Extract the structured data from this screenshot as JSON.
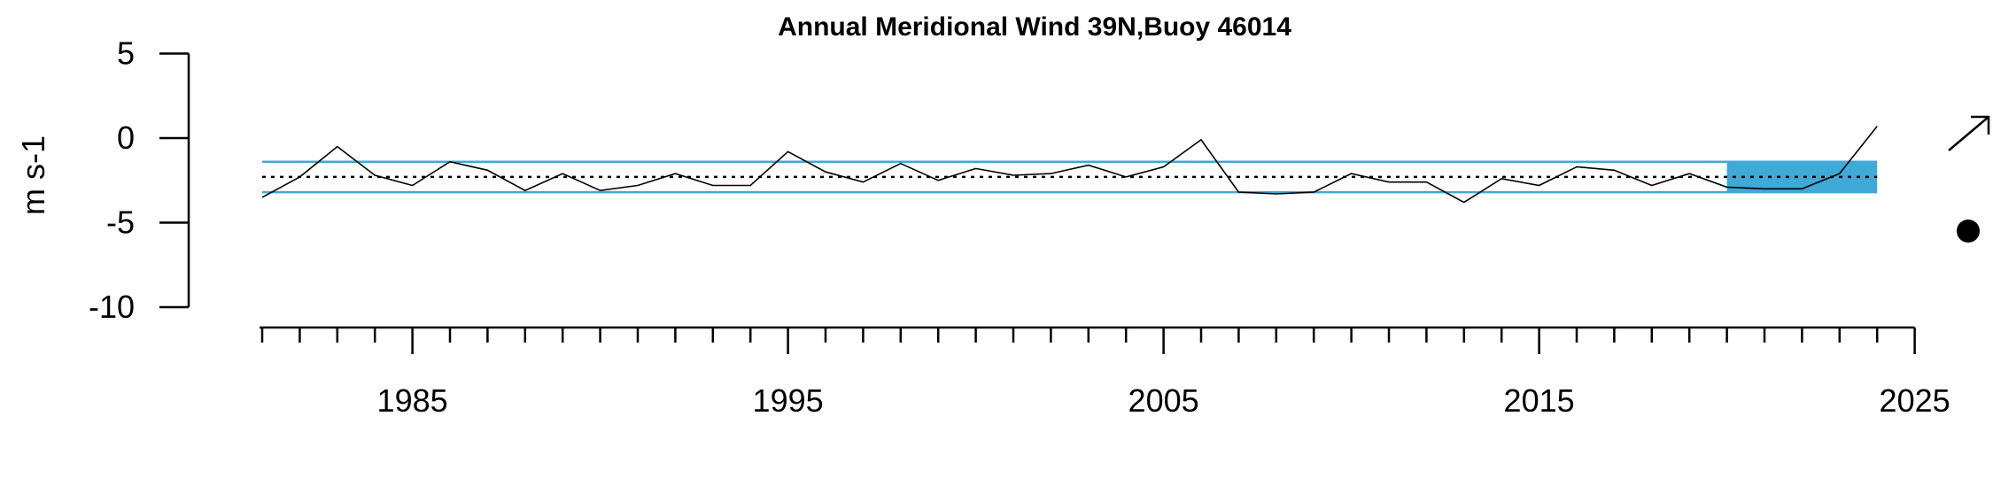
{
  "chart_data": {
    "type": "line",
    "title": "Annual Meridional Wind 39N,Buoy 46014",
    "xlabel": "",
    "ylabel": "m s-1",
    "xlim": [
      1981,
      2025
    ],
    "ylim": [
      -10,
      5
    ],
    "x_ticks": [
      1985,
      1995,
      2005,
      2015,
      2025
    ],
    "y_ticks": [
      5,
      0,
      -5,
      -10
    ],
    "x_tick_labels": [
      "1985",
      "1995",
      "2005",
      "2015",
      "2025"
    ],
    "y_tick_labels": [
      "5",
      "0",
      "-5",
      "-10"
    ],
    "series": [
      {
        "x": [
          1981,
          1982,
          1983,
          1984,
          1985,
          1986,
          1987,
          1988,
          1989,
          1990,
          1991,
          1992,
          1993,
          1994,
          1995,
          1996,
          1997,
          1998,
          1999,
          2000,
          2001,
          2002,
          2003,
          2004,
          2005,
          2006,
          2007,
          2008,
          2009,
          2010,
          2011,
          2012,
          2013,
          2014,
          2015,
          2016,
          2017,
          2018,
          2019,
          2020,
          2021,
          2022,
          2023,
          2024
        ],
        "values": [
          -3.5,
          -2.3,
          -0.5,
          -2.2,
          -2.8,
          -1.4,
          -1.9,
          -3.1,
          -2.1,
          -3.1,
          -2.8,
          -2.1,
          -2.8,
          -2.8,
          -0.8,
          -2.0,
          -2.6,
          -1.5,
          -2.5,
          -1.8,
          -2.2,
          -2.1,
          -1.6,
          -2.3,
          -1.7,
          -0.1,
          -3.2,
          -3.3,
          -3.2,
          -2.1,
          -2.6,
          -2.6,
          -3.8,
          -2.4,
          -2.8,
          -1.7,
          -1.9,
          -2.8,
          -2.1,
          -2.9,
          -3.0,
          -3.0,
          -2.1,
          0.7
        ],
        "color": "#000000"
      }
    ],
    "mean": -2.3,
    "sd_band": [
      -3.2,
      -1.4
    ],
    "recent_highlight": {
      "x": [
        2020,
        2024
      ],
      "color": "#3fa9d8"
    },
    "band_color": "#3fa9d8",
    "trend_symbol": "up-right-arrow",
    "mean_symbol": "filled-circle",
    "grid": false,
    "legend": "none"
  }
}
